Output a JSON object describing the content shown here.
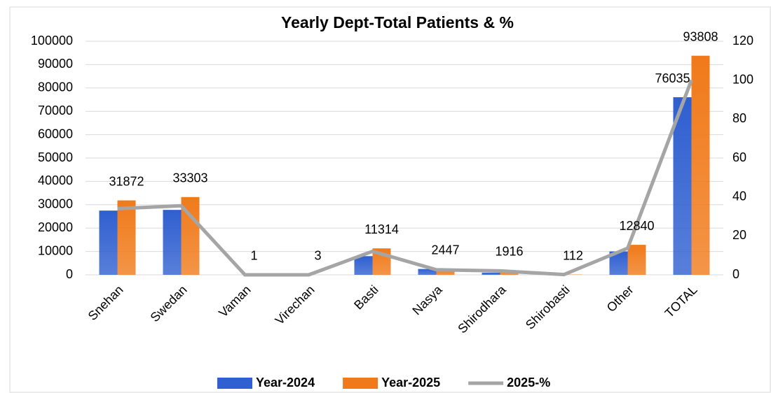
{
  "chart_data": {
    "type": "bar",
    "title": "Yearly Dept-Total Patients & %",
    "categories": [
      "Snehan",
      "Swedan",
      "Vaman",
      "Virechan",
      "Basti",
      "Nasya",
      "Shirodhara",
      "Shirobasti",
      "Other",
      "TOTAL"
    ],
    "series": [
      {
        "name": "Year-2024",
        "color": "#2f5fd0",
        "values": [
          27500,
          27800,
          0,
          0,
          8000,
          2500,
          900,
          100,
          10000,
          76035
        ],
        "value_labels": [
          null,
          null,
          null,
          null,
          null,
          null,
          null,
          null,
          null,
          "76035"
        ]
      },
      {
        "name": "Year-2025",
        "color": "#f07a1a",
        "values": [
          31872,
          33303,
          1,
          3,
          11314,
          2447,
          1916,
          112,
          12840,
          93808
        ],
        "value_labels": [
          "31872",
          "33303",
          "1",
          "3",
          "11314",
          "2447",
          "1916",
          "112",
          "12840",
          "93808"
        ]
      },
      {
        "name": "2025-%",
        "color": "#a5a5a5",
        "type": "line",
        "axis": "y2",
        "values": [
          33.98,
          35.5,
          0,
          0,
          12.06,
          2.61,
          2.04,
          0.12,
          13.69,
          100
        ]
      }
    ],
    "ylim": [
      0,
      100000
    ],
    "yticks": [
      0,
      10000,
      20000,
      30000,
      40000,
      50000,
      60000,
      70000,
      80000,
      90000,
      100000
    ],
    "y2lim": [
      0,
      120
    ],
    "y2ticks": [
      0,
      20,
      40,
      60,
      80,
      100,
      120
    ],
    "grid": true,
    "legend": "bottom"
  }
}
